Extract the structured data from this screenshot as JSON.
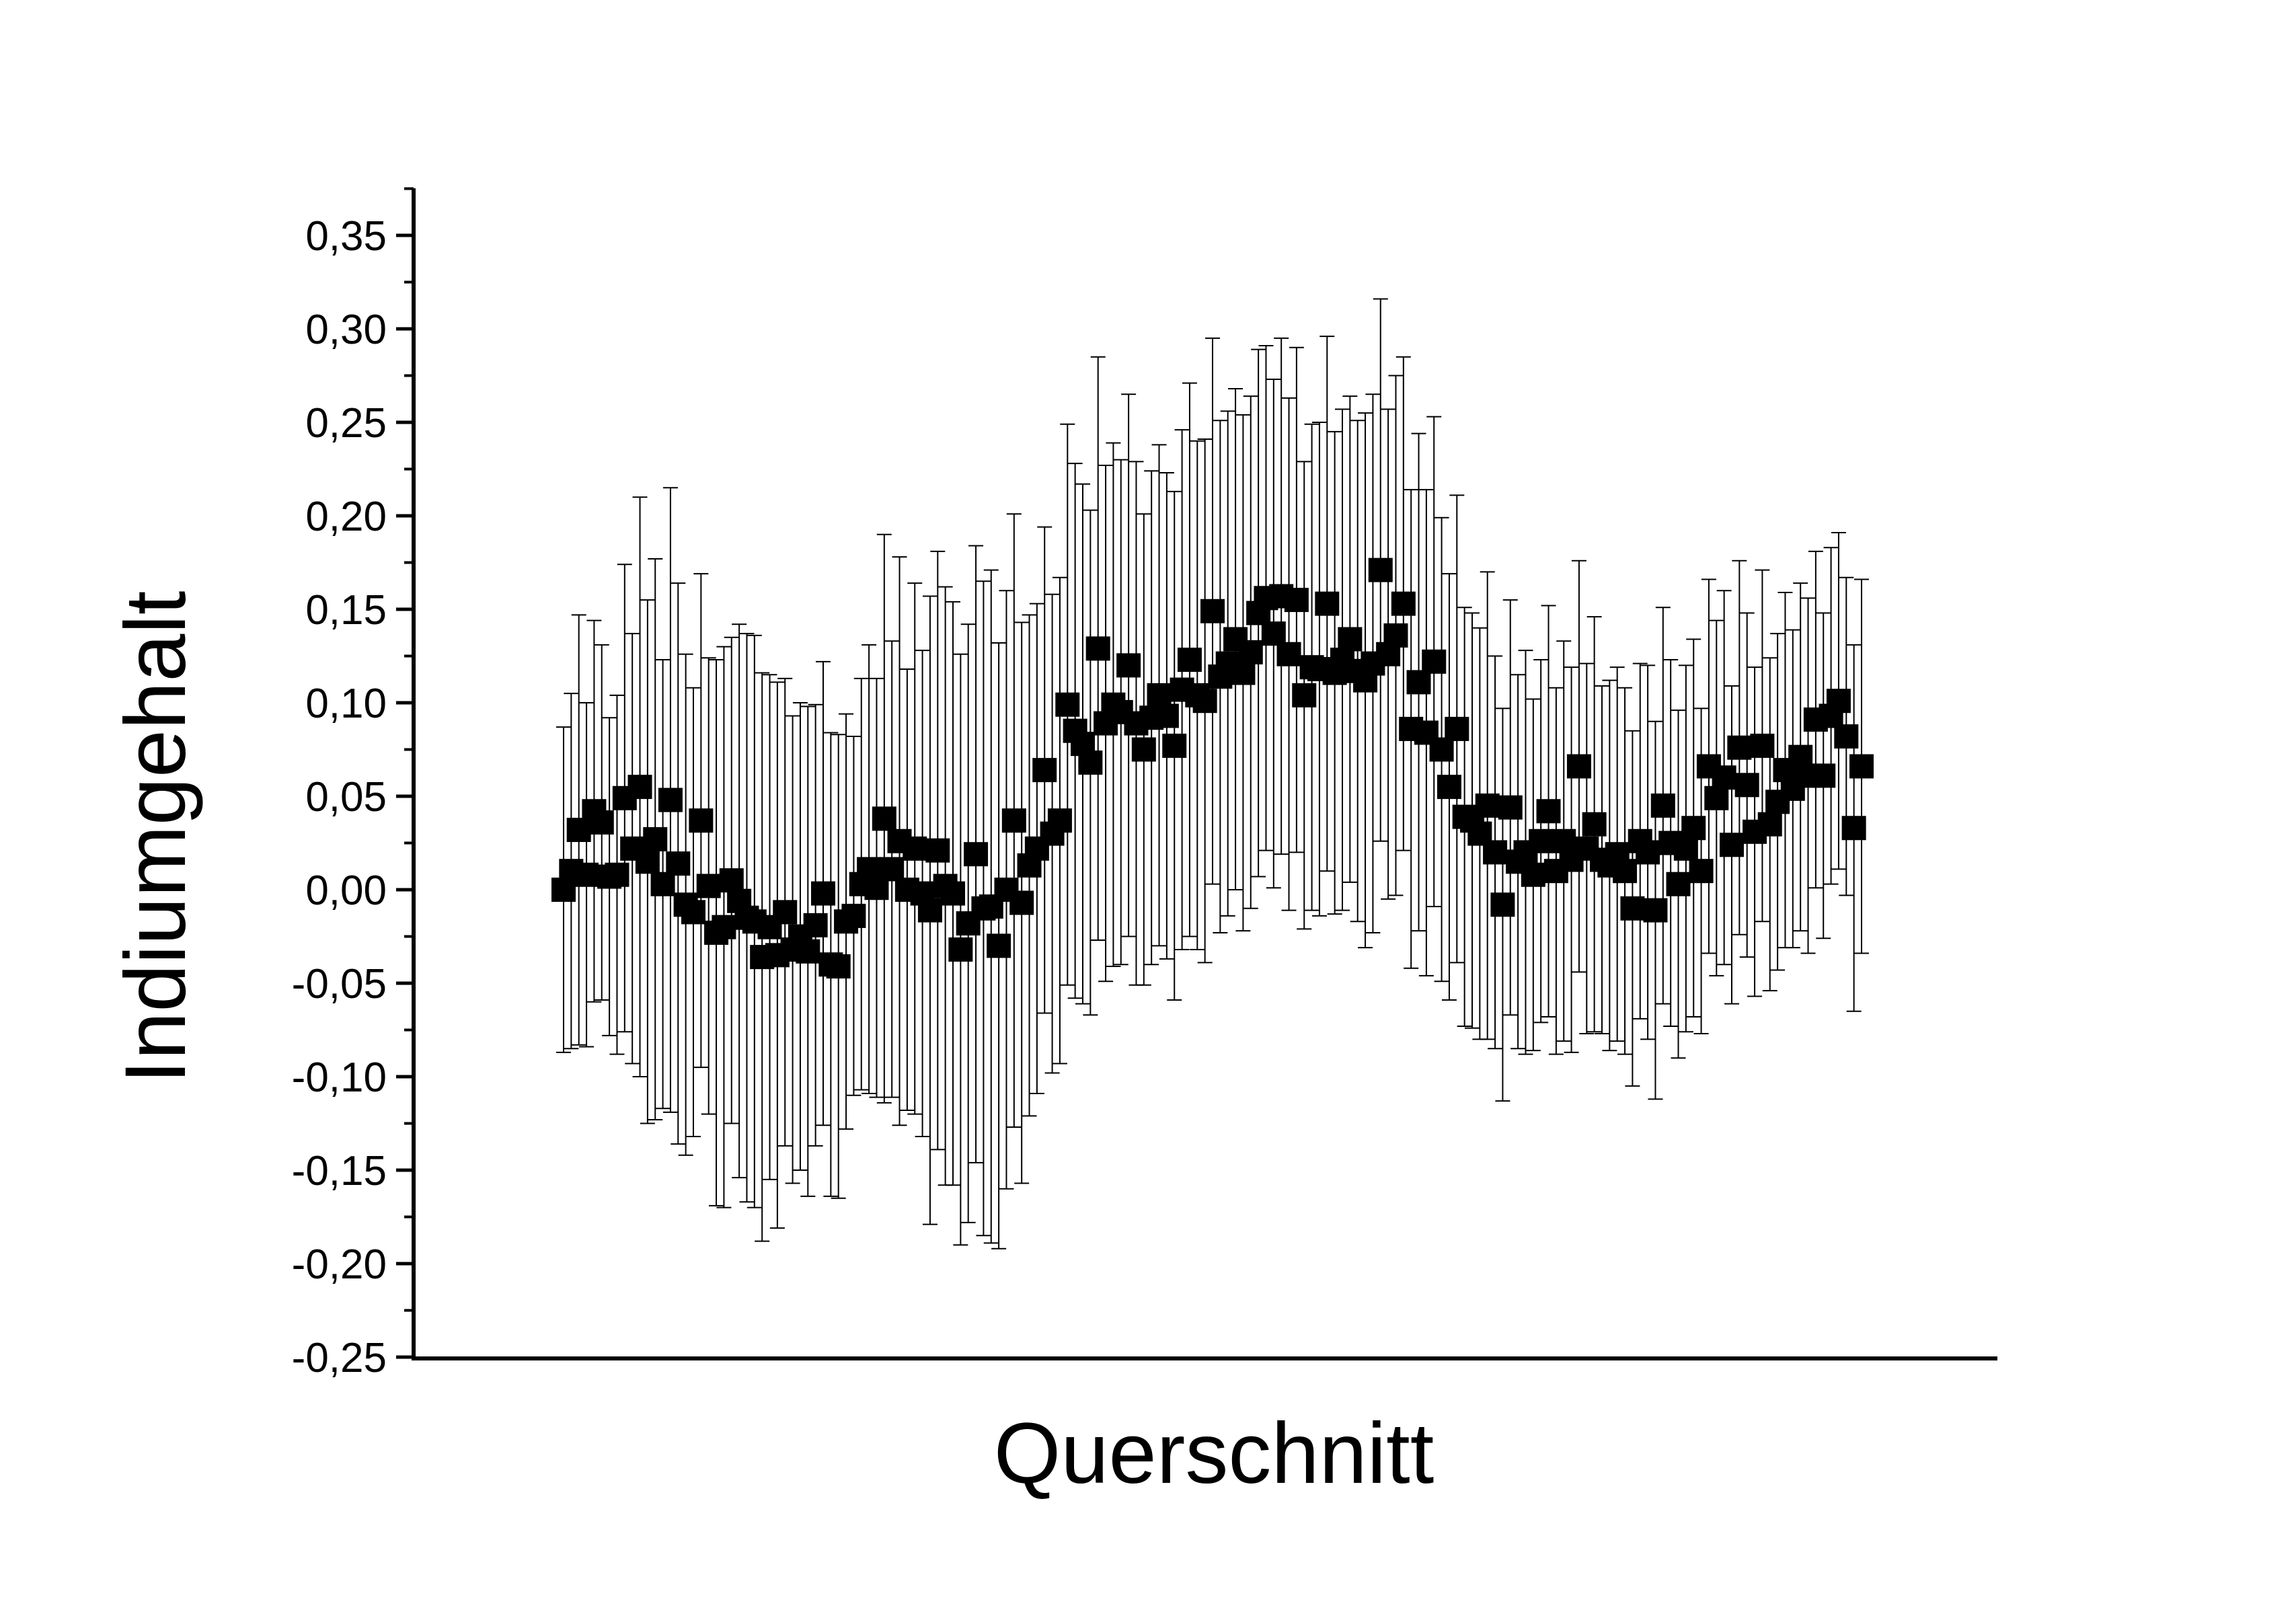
{
  "chart_data": {
    "type": "scatter",
    "xlabel": "Querschnitt",
    "ylabel": "Indiumgehalt",
    "ylim": [
      -0.25,
      0.37
    ],
    "yticks": [
      "-0,25",
      "-0,20",
      "-0,15",
      "-0,10",
      "-0,05",
      "0,00",
      "0,05",
      "0,10",
      "0,15",
      "0,20",
      "0,25",
      "0,30",
      "0,35"
    ],
    "x_tick_labels": false,
    "grid": false,
    "legend": "none",
    "marker": "square",
    "color": "#000000",
    "series": [
      {
        "values": [
          0.0,
          0.01,
          0.032,
          0.008,
          0.042,
          0.036,
          0.007,
          0.008,
          0.049,
          0.022,
          0.055,
          0.015,
          0.027,
          0.003,
          0.048,
          0.014,
          -0.008,
          -0.012,
          0.037,
          0.002,
          -0.023,
          -0.02,
          0.005,
          -0.006,
          -0.015,
          -0.017,
          -0.036,
          -0.02,
          -0.035,
          -0.012,
          -0.032,
          -0.025,
          -0.033,
          -0.019,
          -0.002,
          -0.04,
          -0.041,
          -0.017,
          -0.014,
          0.003,
          0.011,
          0.001,
          0.038,
          0.011,
          0.026,
          0.0,
          0.022,
          -0.002,
          -0.011,
          0.021,
          0.002,
          -0.002,
          -0.032,
          -0.018,
          0.019,
          -0.01,
          -0.009,
          -0.03,
          0.0,
          0.037,
          -0.007,
          0.013,
          0.022,
          0.064,
          0.03,
          0.037,
          0.099,
          0.085,
          0.078,
          0.068,
          0.129,
          0.089,
          0.099,
          0.095,
          0.12,
          0.089,
          0.075,
          0.092,
          0.104,
          0.093,
          0.077,
          0.107,
          0.123,
          0.104,
          0.101,
          0.149,
          0.114,
          0.121,
          0.134,
          0.116,
          0.127,
          0.148,
          0.156,
          0.137,
          0.157,
          0.126,
          0.155,
          0.104,
          0.119,
          0.118,
          0.153,
          0.116,
          0.123,
          0.134,
          0.117,
          0.112,
          0.121,
          0.171,
          0.126,
          0.136,
          0.153,
          0.086,
          0.111,
          0.084,
          0.122,
          0.075,
          0.055,
          0.086,
          0.039,
          0.037,
          0.03,
          0.045,
          0.02,
          -0.008,
          0.044,
          0.015,
          0.02,
          0.008,
          0.026,
          0.042,
          0.01,
          0.026,
          0.016,
          0.066,
          0.022,
          0.035,
          0.016,
          0.013,
          0.019,
          0.01,
          -0.01,
          0.026,
          0.02,
          -0.011,
          0.045,
          0.025,
          0.003,
          0.022,
          0.033,
          0.01,
          0.066,
          0.049,
          0.06,
          0.024,
          0.076,
          0.056,
          0.031,
          0.077,
          0.035,
          0.047,
          0.064,
          0.054,
          0.071,
          0.061,
          0.091,
          0.061,
          0.093,
          0.101,
          0.082,
          0.033,
          0.066
        ],
        "errors": [
          0.087,
          0.095,
          0.115,
          0.092,
          0.102,
          0.095,
          0.085,
          0.096,
          0.125,
          0.115,
          0.155,
          0.14,
          0.15,
          0.12,
          0.167,
          0.15,
          0.134,
          0.12,
          0.132,
          0.122,
          0.146,
          0.15,
          0.13,
          0.148,
          0.152,
          0.153,
          0.152,
          0.135,
          0.146,
          0.125,
          0.125,
          0.125,
          0.131,
          0.118,
          0.124,
          0.124,
          0.124,
          0.111,
          0.096,
          0.11,
          0.12,
          0.112,
          0.152,
          0.122,
          0.152,
          0.118,
          0.142,
          0.13,
          0.168,
          0.16,
          0.16,
          0.156,
          0.158,
          0.16,
          0.165,
          0.175,
          0.18,
          0.162,
          0.16,
          0.164,
          0.15,
          0.134,
          0.131,
          0.13,
          0.128,
          0.13,
          0.15,
          0.143,
          0.139,
          0.135,
          0.156,
          0.138,
          0.14,
          0.135,
          0.145,
          0.14,
          0.126,
          0.132,
          0.134,
          0.13,
          0.136,
          0.139,
          0.148,
          0.136,
          0.14,
          0.146,
          0.137,
          0.135,
          0.134,
          0.138,
          0.137,
          0.141,
          0.135,
          0.136,
          0.138,
          0.137,
          0.135,
          0.125,
          0.13,
          0.132,
          0.143,
          0.129,
          0.134,
          0.13,
          0.134,
          0.143,
          0.144,
          0.145,
          0.131,
          0.139,
          0.132,
          0.128,
          0.133,
          0.13,
          0.131,
          0.124,
          0.114,
          0.125,
          0.112,
          0.111,
          0.11,
          0.125,
          0.105,
          0.105,
          0.111,
          0.1,
          0.108,
          0.094,
          0.097,
          0.11,
          0.098,
          0.107,
          0.103,
          0.11,
          0.099,
          0.111,
          0.093,
          0.099,
          0.1,
          0.098,
          0.095,
          0.095,
          0.1,
          0.101,
          0.106,
          0.098,
          0.093,
          0.098,
          0.101,
          0.087,
          0.1,
          0.095,
          0.1,
          0.085,
          0.1,
          0.092,
          0.088,
          0.094,
          0.089,
          0.09,
          0.095,
          0.085,
          0.093,
          0.095,
          0.09,
          0.087,
          0.09,
          0.09,
          0.085,
          0.098,
          0.1
        ]
      }
    ]
  }
}
